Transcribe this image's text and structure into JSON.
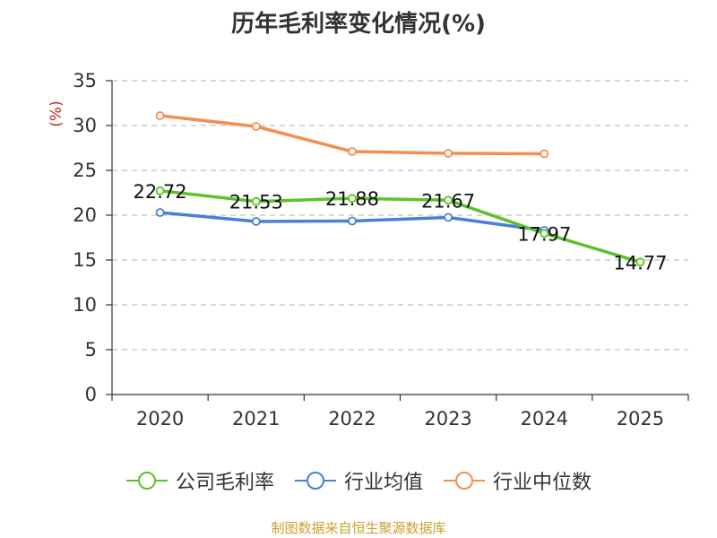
{
  "chart_data": {
    "type": "line",
    "title": "历年毛利率变化情况(%)",
    "ylabel": "(%)",
    "xlabel": "",
    "categories": [
      "2020",
      "2021",
      "2022",
      "2023",
      "2024",
      "2025"
    ],
    "ylim": [
      0,
      35
    ],
    "yticks": [
      0,
      5,
      10,
      15,
      20,
      25,
      30,
      35
    ],
    "grid": true,
    "legend_position": "bottom",
    "series": [
      {
        "name": "公司毛利率",
        "color": "#5bc22b",
        "values": [
          22.72,
          21.53,
          21.88,
          21.67,
          17.97,
          14.77
        ],
        "labels": [
          "22.72",
          "21.53",
          "21.88",
          "21.67",
          "17.97",
          "14.77"
        ]
      },
      {
        "name": "行业均值",
        "color": "#4a7ed8",
        "values": [
          20.3,
          19.3,
          19.35,
          19.75,
          18.3,
          null
        ]
      },
      {
        "name": "行业中位数",
        "color": "#f48d52",
        "values": [
          31.1,
          29.9,
          27.1,
          26.9,
          26.85,
          null
        ]
      }
    ]
  },
  "source_note": "制图数据来自恒生聚源数据库",
  "colors": {
    "axis": "#333333",
    "grid": "#cccccc",
    "ylabel": "#cc2222",
    "source": "#c8a032"
  }
}
